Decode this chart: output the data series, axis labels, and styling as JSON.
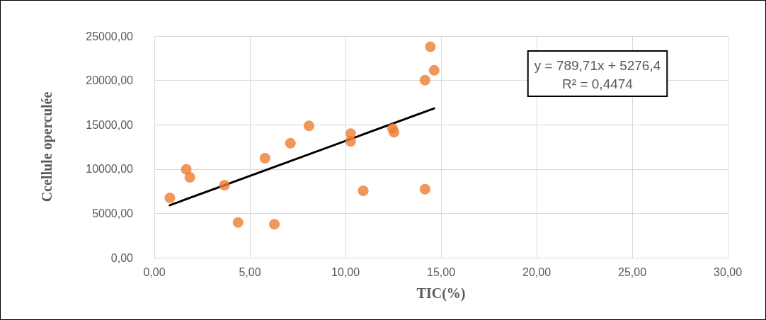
{
  "chart_data": {
    "type": "scatter",
    "xlabel": "TIC(%)",
    "ylabel": "Ccellule operculée",
    "xlim": [
      0,
      30
    ],
    "ylim": [
      0,
      25000
    ],
    "xticks": [
      {
        "value": 0,
        "label": "0,00"
      },
      {
        "value": 5,
        "label": "5,00"
      },
      {
        "value": 10,
        "label": "10,00"
      },
      {
        "value": 15,
        "label": "15,00"
      },
      {
        "value": 20,
        "label": "20,00"
      },
      {
        "value": 25,
        "label": "25,00"
      },
      {
        "value": 30,
        "label": "30,00"
      }
    ],
    "yticks": [
      {
        "value": 0,
        "label": "0,00"
      },
      {
        "value": 5000,
        "label": "5000,00"
      },
      {
        "value": 10000,
        "label": "10000,00"
      },
      {
        "value": 15000,
        "label": "15000,00"
      },
      {
        "value": 20000,
        "label": "20000,00"
      },
      {
        "value": 25000,
        "label": "25000,00"
      }
    ],
    "grid": true,
    "marker": "circle",
    "series": [
      {
        "color": "#ed7d31",
        "x": [
          0.81,
          1.67,
          1.86,
          3.67,
          4.38,
          5.79,
          6.28,
          7.12,
          8.09,
          10.27,
          10.27,
          10.93,
          12.46,
          12.54,
          14.16,
          14.16,
          14.44,
          14.64
        ],
        "values": [
          6750,
          9970,
          9070,
          8180,
          3970,
          11220,
          3780,
          12910,
          14870,
          14000,
          13120,
          7540,
          14550,
          14150,
          20030,
          7730,
          23810,
          21140
        ]
      },
      {
        "type": "line",
        "color": "#000000",
        "x": [
          0.81,
          14.64
        ],
        "values": [
          5920,
          16840
        ],
        "marker": "none",
        "line_style": "solid"
      }
    ],
    "annotations": [
      "y = 789,71x + 5276,4\nR² = 0,4474"
    ]
  }
}
